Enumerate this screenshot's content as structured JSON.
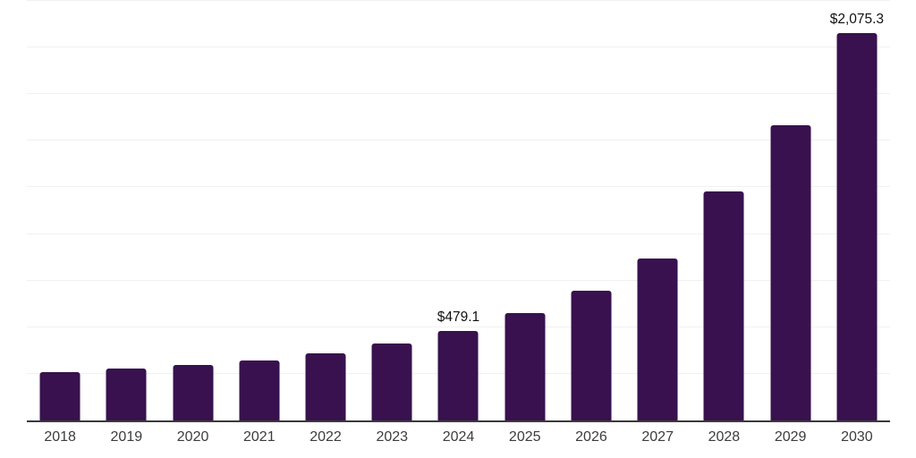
{
  "chart_data": {
    "type": "bar",
    "title": "",
    "xlabel": "",
    "ylabel": "",
    "categories": [
      "2018",
      "2019",
      "2020",
      "2021",
      "2022",
      "2023",
      "2024",
      "2025",
      "2026",
      "2027",
      "2028",
      "2029",
      "2030"
    ],
    "values": [
      260.2,
      278.4,
      296.2,
      322.9,
      358.4,
      411.2,
      479.1,
      575.8,
      698.0,
      868.4,
      1228.6,
      1583.6,
      2075.3
    ],
    "point_labels": [
      "",
      "",
      "",
      "",
      "",
      "",
      "$479.1",
      "",
      "",
      "",
      "",
      "",
      "$2,075.3"
    ],
    "ylim": [
      0,
      2250
    ],
    "grid_step": 250,
    "grid": "horizontal",
    "y_axis_labels": "none",
    "legend": "none",
    "colors": {
      "bar": "#38114E",
      "gridline": "#F1F1F1",
      "axis_line": "#3A3A3A",
      "value_label": "#111111",
      "tick_label": "#3C3C3C",
      "background": "#FFFFFF"
    }
  }
}
